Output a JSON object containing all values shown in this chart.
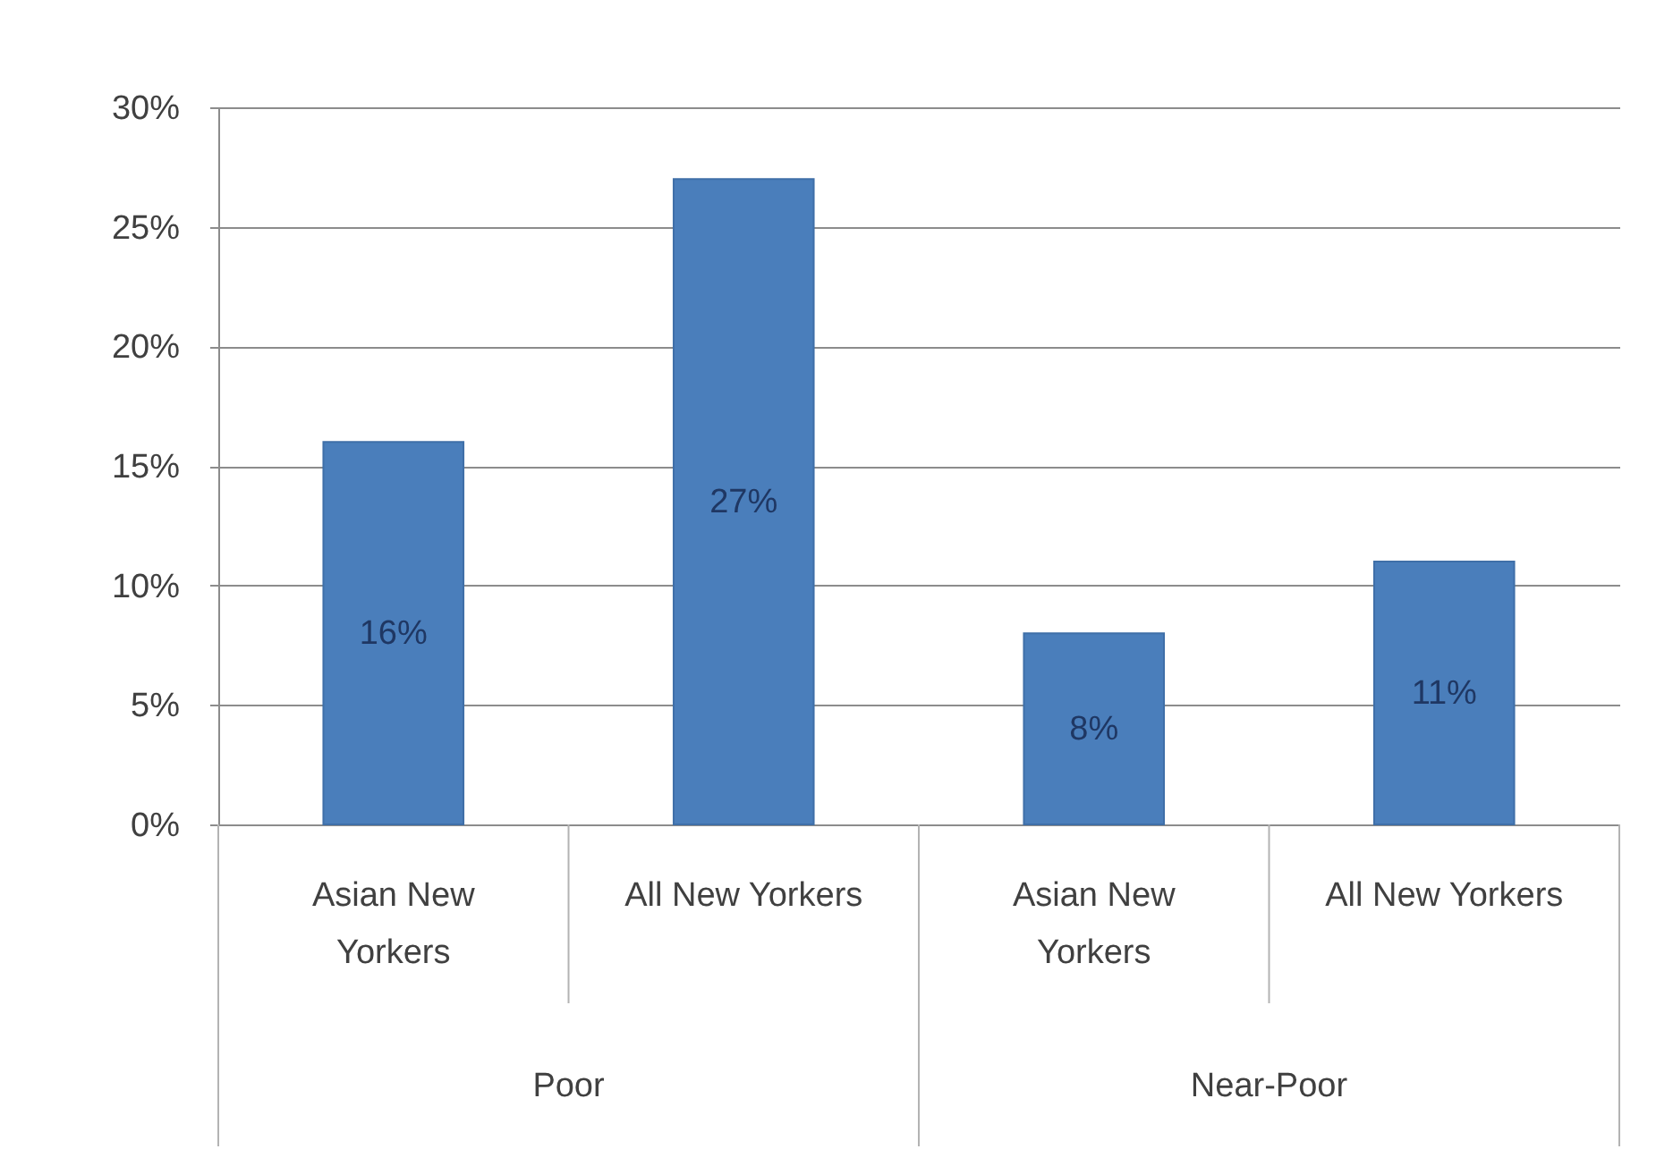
{
  "chart_data": {
    "type": "bar",
    "categories": [
      "Asian New Yorkers",
      "All New Yorkers",
      "Asian New Yorkers",
      "All New Yorkers"
    ],
    "values": [
      16,
      27,
      8,
      11
    ],
    "color": "#4a7ebb",
    "value_labels": [
      "16%",
      "27%",
      "8%",
      "11%"
    ],
    "ylim": [
      0,
      30
    ],
    "yticks": [
      {
        "value": 0,
        "label": "0%"
      },
      {
        "value": 5,
        "label": "5%"
      },
      {
        "value": 10,
        "label": "10%"
      },
      {
        "value": 15,
        "label": "15%"
      },
      {
        "value": 20,
        "label": "20%"
      },
      {
        "value": 25,
        "label": "25%"
      },
      {
        "value": 30,
        "label": "30%"
      }
    ],
    "grid": "y",
    "annotations": [
      "Poor",
      "Near-Poor"
    ]
  }
}
